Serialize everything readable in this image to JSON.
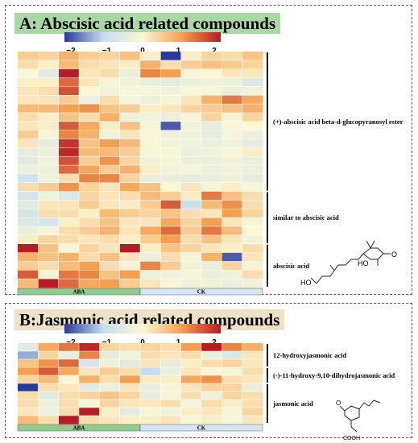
{
  "panels": {
    "a": {
      "title": "A: Abscisic acid related compounds"
    },
    "b": {
      "title": "B:Jasmonic acid related compounds"
    }
  },
  "colors": {
    "low": "#2b3a9a",
    "mid_low": "#c6dff0",
    "mid": "#fbf7d4",
    "mid_high": "#f5a050",
    "high": "#b51c24",
    "aba_bar": "#8fcc8f",
    "ck_bar": "#d4e6f5",
    "title_a_bg": "#a9d8a5",
    "title_b_bg": "#ede1c6"
  },
  "chart_data": [
    {
      "type": "heatmap",
      "title": "A: Abscisic acid related compounds",
      "color_scale": {
        "min": -2,
        "max": 2,
        "ticks": [
          "−2",
          "−1",
          "0",
          "1",
          "2"
        ]
      },
      "column_groups": [
        {
          "label": "ABA",
          "columns": 6
        },
        {
          "label": "CK",
          "columns": 6
        }
      ],
      "row_groups": [
        {
          "label": "(+)-abscisic acid beta-d-glucopyranosyl ester",
          "rows": 16
        },
        {
          "label": "similar to abscisic acid",
          "rows": 6
        },
        {
          "label": "abscisic acid",
          "rows": 5
        }
      ],
      "values": [
        [
          0.5,
          0.4,
          0.8,
          0.5,
          0.4,
          0.6,
          0.1,
          -2.0,
          0.1,
          0.4,
          0.3,
          0.6
        ],
        [
          0.3,
          0.1,
          0.7,
          0.3,
          0.2,
          0.1,
          0.8,
          0.3,
          0.5,
          0.6,
          0.5,
          0.4
        ],
        [
          0.0,
          -0.5,
          2.3,
          0.2,
          0.3,
          -0.3,
          1.2,
          1.0,
          -0.1,
          0.0,
          0.2,
          0.2
        ],
        [
          0.1,
          0.1,
          1.4,
          0.2,
          -0.1,
          -0.2,
          -0.3,
          -0.4,
          -0.3,
          -0.2,
          -0.3,
          -0.6
        ],
        [
          0.2,
          0.3,
          1.6,
          0.0,
          -0.2,
          -0.1,
          -0.1,
          -0.2,
          0.0,
          -0.1,
          -0.3,
          -0.2
        ],
        [
          0.2,
          0.2,
          0.5,
          -0.3,
          0.3,
          -0.1,
          -0.3,
          -0.1,
          0.2,
          0.8,
          1.3,
          0.9
        ],
        [
          0.7,
          0.7,
          1.0,
          1.1,
          0.6,
          0.5,
          0.1,
          0.2,
          0.4,
          0.5,
          0.6,
          0.8
        ],
        [
          0.3,
          0.1,
          0.6,
          0.3,
          0.8,
          -0.2,
          -0.2,
          -0.3,
          -0.1,
          0.4,
          -0.1,
          0.4
        ],
        [
          0.2,
          0.1,
          1.5,
          0.9,
          0.1,
          0.6,
          -0.1,
          -1.8,
          -0.2,
          -0.4,
          -0.1,
          0.0
        ],
        [
          0.5,
          -0.1,
          1.2,
          0.8,
          -0.2,
          0.2,
          -0.1,
          -0.2,
          -0.2,
          -0.4,
          -0.1,
          -0.3
        ],
        [
          0.2,
          -0.4,
          1.8,
          0.6,
          1.0,
          0.7,
          -0.1,
          -0.2,
          -0.2,
          -0.3,
          -0.2,
          -0.4
        ],
        [
          -0.4,
          -0.3,
          1.9,
          0.7,
          0.7,
          0.5,
          -0.1,
          -0.1,
          -0.3,
          -0.2,
          -0.1,
          0.1
        ],
        [
          -0.5,
          -0.2,
          1.6,
          0.5,
          1.1,
          0.4,
          -0.2,
          -0.1,
          -0.3,
          -0.3,
          -0.2,
          -0.3
        ],
        [
          -0.3,
          -0.3,
          1.4,
          0.9,
          0.5,
          0.8,
          0.1,
          -0.2,
          -0.1,
          -0.3,
          -0.2,
          -0.3
        ],
        [
          -0.8,
          -0.2,
          0.3,
          1.2,
          1.2,
          0.4,
          -0.3,
          -0.3,
          -0.4,
          -0.3,
          -0.2,
          -0.4
        ],
        [
          0.3,
          0.5,
          1.1,
          0.4,
          0.2,
          0.9,
          0.6,
          0.0,
          0.2,
          -0.1,
          0.1,
          -0.1
        ],
        [
          -0.7,
          -0.2,
          -0.6,
          0.4,
          0.2,
          0.3,
          0.7,
          0.5,
          0.1,
          1.3,
          0.6,
          0.3
        ],
        [
          -0.5,
          0.2,
          0.2,
          0.5,
          0.2,
          0.1,
          0.5,
          1.5,
          -0.9,
          0.7,
          1.1,
          0.3
        ],
        [
          -0.7,
          0.3,
          0.3,
          0.1,
          0.7,
          0.5,
          0.4,
          0.6,
          0.3,
          0.2,
          1.0,
          0.4
        ],
        [
          -0.6,
          -0.7,
          0.1,
          0.3,
          0.6,
          0.2,
          0.2,
          0.9,
          0.4,
          1.0,
          0.2,
          -0.1
        ],
        [
          -0.3,
          -0.1,
          0.3,
          0.5,
          0.8,
          0.2,
          0.9,
          1.4,
          0.5,
          1.3,
          0.7,
          0.0
        ],
        [
          0.1,
          0.4,
          0.3,
          0.2,
          0.3,
          0.1,
          0.5,
          1.0,
          0.3,
          0.6,
          0.2,
          -0.2
        ],
        [
          2.3,
          0.6,
          -0.1,
          0.4,
          0.2,
          2.3,
          0.1,
          0.6,
          0.4,
          0.2,
          0.1,
          0.3
        ],
        [
          0.8,
          0.6,
          0.8,
          0.3,
          0.6,
          0.2,
          -0.3,
          0.3,
          -0.1,
          0.8,
          -1.8,
          0.2
        ],
        [
          0.5,
          0.3,
          0.7,
          1.0,
          0.3,
          -0.2,
          1.2,
          0.5,
          -0.2,
          -0.3,
          0.4,
          -0.1
        ],
        [
          1.5,
          -0.1,
          1.3,
          1.2,
          0.6,
          1.0,
          -0.3,
          -0.2,
          -0.1,
          -0.3,
          -0.2,
          0.3
        ],
        [
          0.7,
          2.0,
          1.4,
          0.9,
          1.0,
          0.5,
          0.2,
          -0.1,
          -0.2,
          -0.2,
          -0.3,
          -0.2
        ]
      ]
    },
    {
      "type": "heatmap",
      "title": "B:Jasmonic acid related compounds",
      "color_scale": {
        "min": -2,
        "max": 2,
        "ticks": [
          "−2",
          "−1",
          "0",
          "1",
          "2"
        ]
      },
      "column_groups": [
        {
          "label": "ABA",
          "columns": 6
        },
        {
          "label": "CK",
          "columns": 6
        }
      ],
      "row_groups": [
        {
          "label": "12-hydroxyjasmonic acid",
          "rows": 3
        },
        {
          "label": "(-)-11-hydroxy-9,10-dihydrojasmonic acid",
          "rows": 2
        },
        {
          "label": "jasmonic acid",
          "rows": 5
        }
      ],
      "values": [
        [
          -0.5,
          0.9,
          1.3,
          1.9,
          0.4,
          0.3,
          0.4,
          0.3,
          1.0,
          2.0,
          1.2,
          0.8
        ],
        [
          -1.3,
          0.4,
          -0.3,
          1.2,
          -0.4,
          -0.2,
          0.3,
          0.2,
          0.3,
          -0.3,
          -0.6,
          0.2
        ],
        [
          0.6,
          1.1,
          1.4,
          -0.7,
          -0.2,
          -0.5,
          0.2,
          -0.4,
          0.1,
          0.3,
          0.4,
          0.2
        ],
        [
          1.0,
          1.5,
          0.9,
          0.2,
          0.5,
          0.3,
          -1.0,
          -0.3,
          0.2,
          0.0,
          -0.1,
          0.3
        ],
        [
          0.4,
          0.7,
          0.0,
          0.8,
          0.3,
          1.0,
          0.1,
          0.1,
          0.9,
          1.1,
          0.3,
          0.2
        ],
        [
          -2.1,
          0.3,
          0.2,
          -0.5,
          -0.3,
          0.2,
          -0.3,
          -0.1,
          0.2,
          0.4,
          0.4,
          -0.3
        ],
        [
          0.3,
          -0.5,
          0.3,
          0.4,
          0.6,
          0.4,
          -0.4,
          -0.1,
          0.3,
          -0.3,
          0.4,
          0.3
        ],
        [
          0.3,
          -0.3,
          0.3,
          -0.1,
          0.4,
          0.2,
          0.2,
          0.3,
          -0.1,
          0.3,
          0.1,
          0.3
        ],
        [
          0.2,
          -0.3,
          0.3,
          2.1,
          0.1,
          -0.5,
          -0.1,
          -0.2,
          0.1,
          0.2,
          -0.1,
          0.4
        ],
        [
          0.7,
          0.3,
          2.3,
          0.3,
          0.2,
          0.1,
          0.1,
          0.2,
          -0.1,
          0.1,
          -0.1,
          0.2
        ]
      ]
    }
  ]
}
